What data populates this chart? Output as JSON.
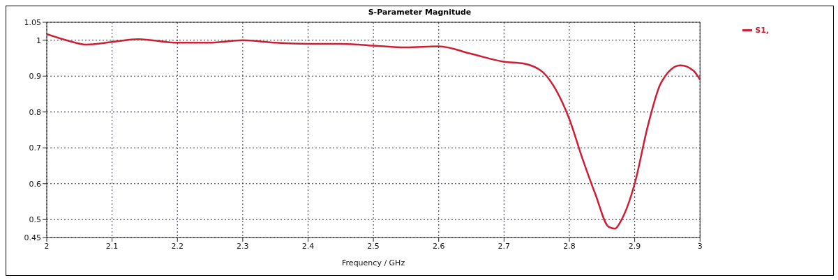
{
  "chart_data": {
    "type": "line",
    "title": "S-Parameter Magnitude",
    "xlabel": "Frequency / GHz",
    "x": [
      2.0,
      2.03,
      2.06,
      2.1,
      2.14,
      2.2,
      2.25,
      2.3,
      2.35,
      2.4,
      2.45,
      2.5,
      2.55,
      2.6,
      2.65,
      2.7,
      2.73,
      2.76,
      2.78,
      2.8,
      2.82,
      2.84,
      2.86,
      2.87,
      2.88,
      2.9,
      2.92,
      2.94,
      2.97,
      2.99,
      3.0
    ],
    "series": [
      {
        "name": "S1,",
        "color": "#cc1f36",
        "values": [
          1.017,
          1.0,
          0.988,
          0.995,
          1.003,
          0.993,
          0.993,
          1.0,
          0.993,
          0.99,
          0.99,
          0.985,
          0.98,
          0.983,
          0.962,
          0.94,
          0.935,
          0.91,
          0.86,
          0.78,
          0.67,
          0.57,
          0.48,
          0.475,
          0.5,
          0.6,
          0.76,
          0.88,
          0.93,
          0.915,
          0.89
        ]
      }
    ],
    "xlim": [
      2,
      3
    ],
    "xticks": [
      2,
      2.1,
      2.2,
      2.3,
      2.4,
      2.5,
      2.6,
      2.7,
      2.8,
      2.9,
      3
    ],
    "ylim": [
      0.45,
      1.05
    ],
    "yticks": [
      0.45,
      0.5,
      0.6,
      0.7,
      0.8,
      0.9,
      1,
      1.05
    ],
    "grid": true,
    "legend": "top right",
    "marker": "none",
    "line_style": "solid"
  }
}
